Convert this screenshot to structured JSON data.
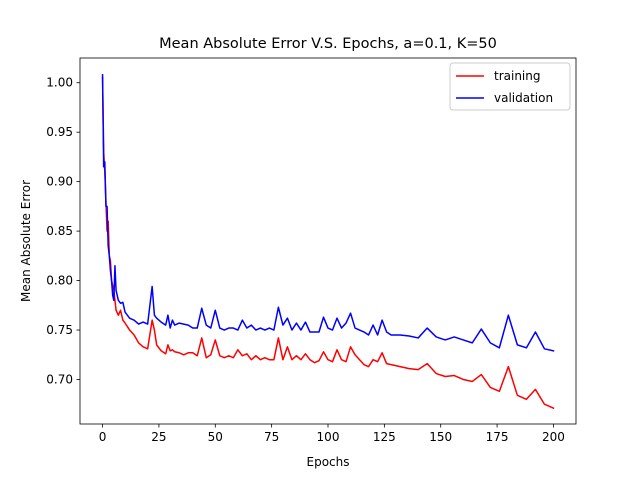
{
  "chart_data": {
    "type": "line",
    "title": "Mean Absolute Error V.S. Epochs, a=0.1, K=50",
    "xlabel": "Epochs",
    "ylabel": "Mean Absolute Error",
    "xlim": [
      -10,
      210
    ],
    "ylim": [
      0.655,
      1.025
    ],
    "xticks": [
      0,
      25,
      50,
      75,
      100,
      125,
      150,
      175,
      200
    ],
    "yticks": [
      0.7,
      0.75,
      0.8,
      0.85,
      0.9,
      0.95,
      1.0
    ],
    "xtick_labels": [
      "0",
      "25",
      "50",
      "75",
      "100",
      "125",
      "150",
      "175",
      "200"
    ],
    "ytick_labels": [
      "0.70",
      "0.75",
      "0.80",
      "0.85",
      "0.90",
      "0.95",
      "1.00"
    ],
    "grid": false,
    "legend_position": "top-right",
    "series": [
      {
        "name": "training",
        "color": "#ff0000",
        "x": [
          0,
          0.5,
          1,
          1.5,
          2,
          2.5,
          3,
          3.5,
          4,
          4.5,
          5,
          5.5,
          6,
          7,
          8,
          9,
          10,
          12,
          14,
          16,
          18,
          20,
          22,
          23,
          24,
          26,
          28,
          29,
          30,
          31,
          32,
          34,
          36,
          38,
          40,
          42,
          44,
          46,
          48,
          50,
          52,
          54,
          56,
          58,
          60,
          62,
          64,
          66,
          68,
          70,
          72,
          74,
          76,
          78,
          80,
          82,
          84,
          86,
          88,
          90,
          92,
          94,
          96,
          98,
          100,
          102,
          104,
          106,
          108,
          110,
          112,
          114,
          116,
          118,
          120,
          122,
          124,
          126,
          128,
          132,
          136,
          140,
          144,
          148,
          152,
          156,
          160,
          164,
          168,
          172,
          176,
          180,
          184,
          188,
          192,
          196,
          200
        ],
        "values": [
          1.005,
          0.93,
          0.91,
          0.88,
          0.85,
          0.86,
          0.825,
          0.82,
          0.8,
          0.795,
          0.79,
          0.78,
          0.77,
          0.765,
          0.77,
          0.76,
          0.757,
          0.75,
          0.745,
          0.737,
          0.733,
          0.731,
          0.76,
          0.75,
          0.735,
          0.729,
          0.726,
          0.735,
          0.729,
          0.73,
          0.728,
          0.727,
          0.725,
          0.727,
          0.727,
          0.724,
          0.742,
          0.722,
          0.725,
          0.74,
          0.724,
          0.722,
          0.724,
          0.722,
          0.73,
          0.724,
          0.726,
          0.72,
          0.724,
          0.72,
          0.722,
          0.72,
          0.72,
          0.742,
          0.72,
          0.733,
          0.72,
          0.724,
          0.72,
          0.726,
          0.72,
          0.717,
          0.719,
          0.728,
          0.72,
          0.718,
          0.73,
          0.72,
          0.718,
          0.733,
          0.725,
          0.72,
          0.715,
          0.713,
          0.72,
          0.718,
          0.727,
          0.716,
          0.715,
          0.713,
          0.711,
          0.71,
          0.716,
          0.706,
          0.703,
          0.704,
          0.7,
          0.698,
          0.705,
          0.692,
          0.688,
          0.713,
          0.684,
          0.68,
          0.69,
          0.675,
          0.671
        ]
      },
      {
        "name": "validation",
        "color": "#0000ff",
        "x": [
          0,
          0.5,
          1,
          1.5,
          2,
          2.5,
          3,
          3.5,
          4,
          4.5,
          5,
          5.5,
          6,
          7,
          8,
          9,
          10,
          12,
          14,
          16,
          18,
          20,
          22,
          23,
          24,
          26,
          28,
          29,
          30,
          31,
          32,
          34,
          36,
          38,
          40,
          42,
          44,
          46,
          48,
          50,
          52,
          54,
          56,
          58,
          60,
          62,
          64,
          66,
          68,
          70,
          72,
          74,
          76,
          78,
          80,
          82,
          84,
          86,
          88,
          90,
          92,
          94,
          96,
          98,
          100,
          102,
          104,
          106,
          108,
          110,
          112,
          114,
          116,
          118,
          120,
          122,
          124,
          126,
          128,
          132,
          136,
          140,
          144,
          148,
          152,
          156,
          160,
          164,
          168,
          172,
          176,
          180,
          184,
          188,
          192,
          196,
          200
        ],
        "values": [
          1.008,
          0.915,
          0.92,
          0.875,
          0.875,
          0.835,
          0.825,
          0.81,
          0.8,
          0.785,
          0.78,
          0.815,
          0.79,
          0.78,
          0.777,
          0.778,
          0.768,
          0.762,
          0.76,
          0.756,
          0.758,
          0.756,
          0.794,
          0.765,
          0.762,
          0.758,
          0.755,
          0.765,
          0.752,
          0.76,
          0.755,
          0.757,
          0.756,
          0.755,
          0.752,
          0.752,
          0.772,
          0.755,
          0.752,
          0.77,
          0.752,
          0.75,
          0.752,
          0.752,
          0.75,
          0.76,
          0.752,
          0.755,
          0.75,
          0.752,
          0.75,
          0.752,
          0.75,
          0.773,
          0.755,
          0.762,
          0.75,
          0.757,
          0.75,
          0.758,
          0.748,
          0.748,
          0.748,
          0.763,
          0.752,
          0.75,
          0.762,
          0.752,
          0.757,
          0.767,
          0.752,
          0.75,
          0.748,
          0.745,
          0.755,
          0.745,
          0.76,
          0.748,
          0.745,
          0.745,
          0.744,
          0.742,
          0.752,
          0.743,
          0.74,
          0.743,
          0.74,
          0.737,
          0.751,
          0.737,
          0.732,
          0.765,
          0.735,
          0.732,
          0.748,
          0.731,
          0.729
        ]
      }
    ]
  }
}
